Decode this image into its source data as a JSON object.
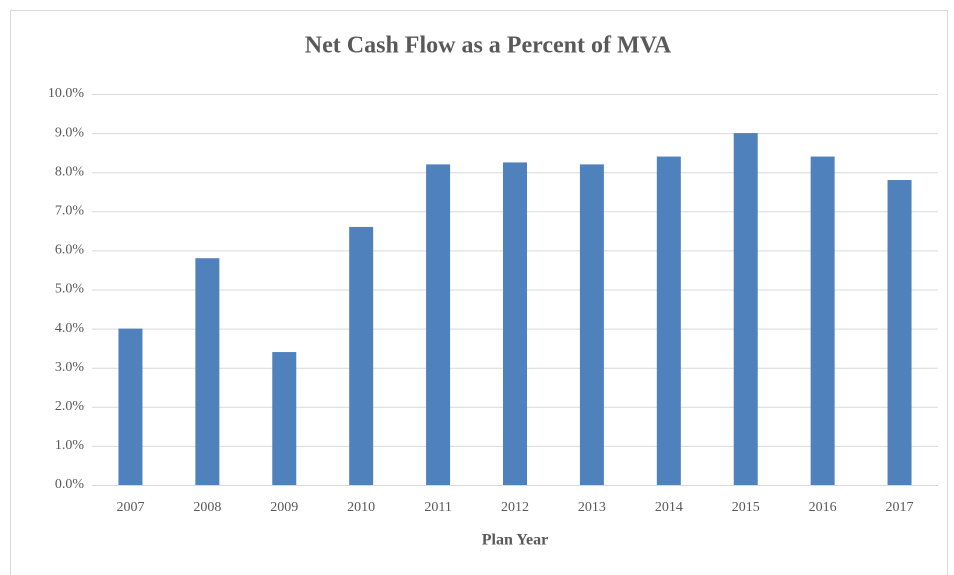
{
  "chart_data": {
    "type": "bar",
    "title": "Net Cash Flow as a Percent of MVA",
    "x_label": "Plan Year",
    "categories": [
      "2007",
      "2008",
      "2009",
      "2010",
      "2011",
      "2012",
      "2013",
      "2014",
      "2015",
      "2016",
      "2017"
    ],
    "values": [
      4.0,
      5.8,
      3.4,
      6.6,
      8.2,
      8.25,
      8.2,
      8.4,
      9.0,
      8.4,
      7.8
    ],
    "color": "#4f81bd",
    "ylim": [
      0,
      10
    ],
    "yticks": [
      {
        "value": 0,
        "label": "0.0%"
      },
      {
        "value": 1,
        "label": "1.0%"
      },
      {
        "value": 2,
        "label": "2.0%"
      },
      {
        "value": 3,
        "label": "3.0%"
      },
      {
        "value": 4,
        "label": "4.0%"
      },
      {
        "value": 5,
        "label": "5.0%"
      },
      {
        "value": 6,
        "label": "6.0%"
      },
      {
        "value": 7,
        "label": "7.0%"
      },
      {
        "value": 8,
        "label": "8.0%"
      },
      {
        "value": 9,
        "label": "9.0%"
      },
      {
        "value": 10,
        "label": "10.0%"
      }
    ],
    "grid": true
  }
}
